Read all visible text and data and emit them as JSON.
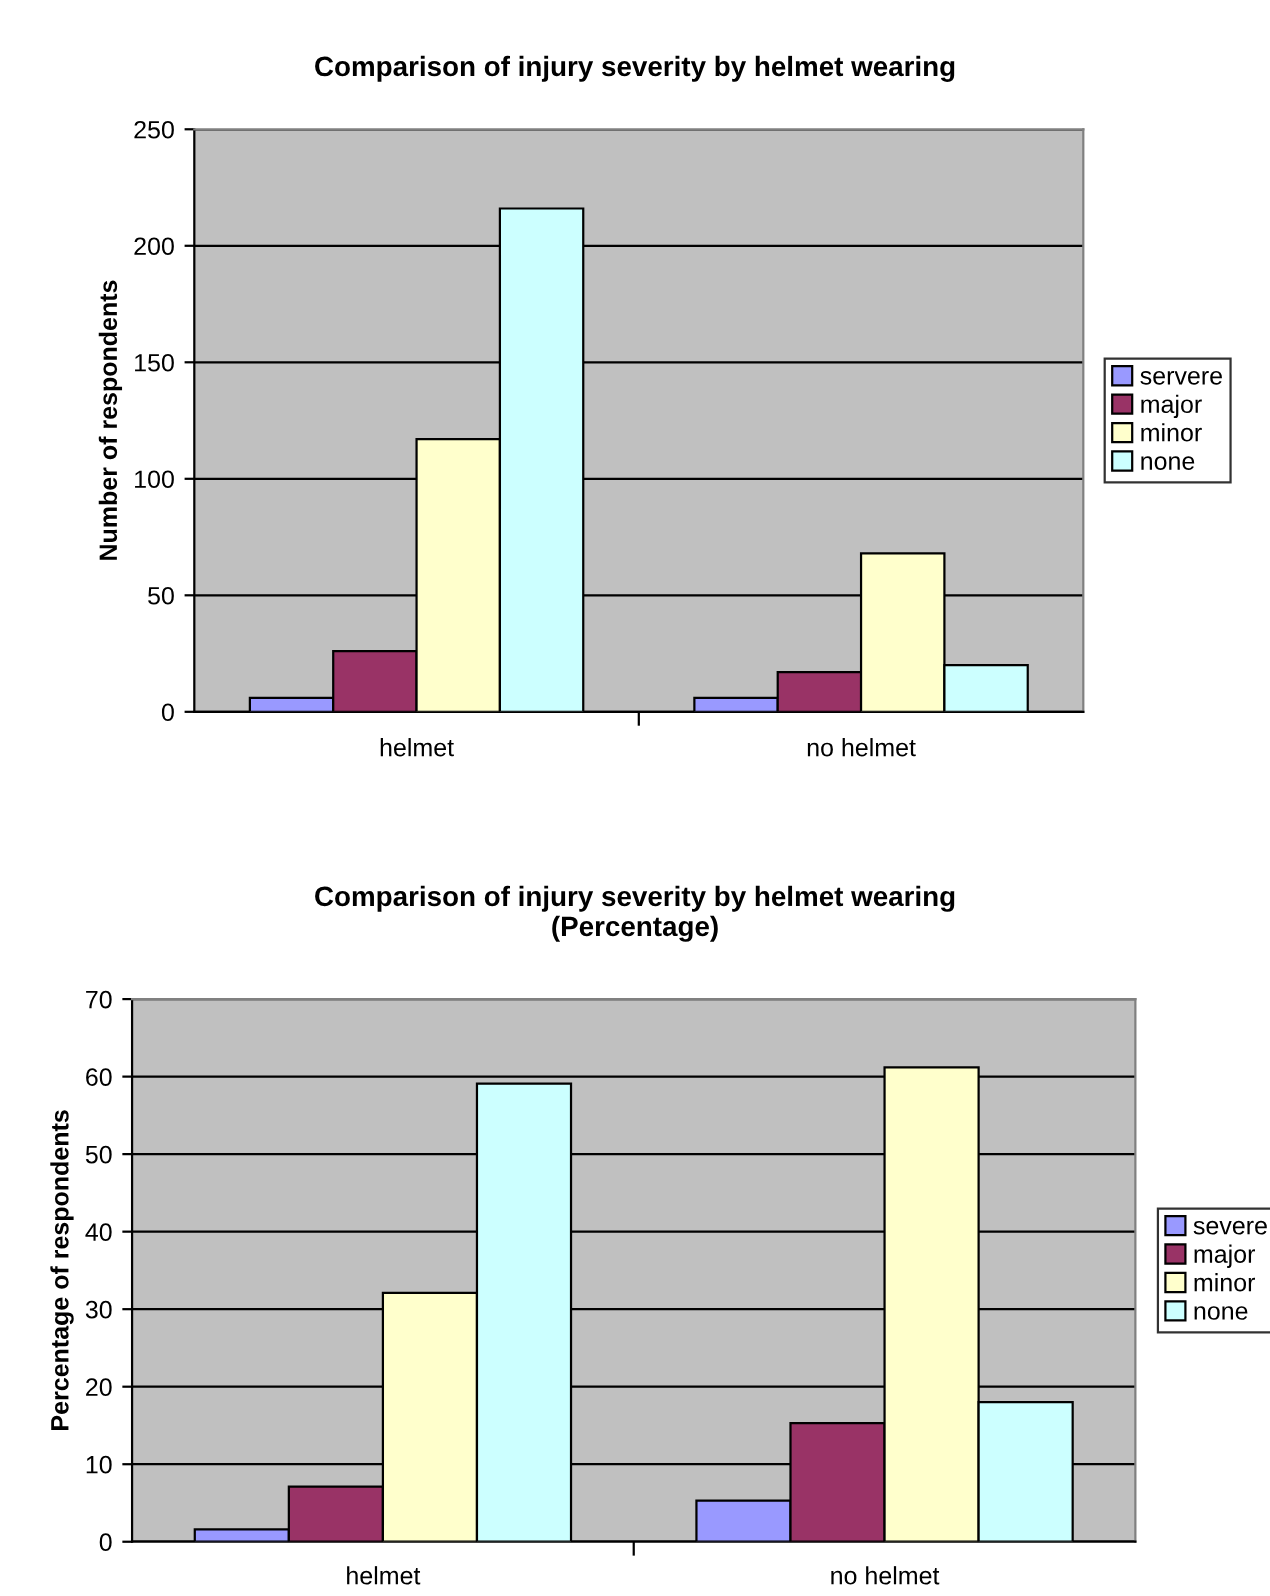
{
  "chart_data": [
    {
      "type": "bar",
      "title": "Comparison of injury severity by helmet wearing",
      "ylabel": "Number of respondents",
      "categories": [
        "helmet",
        "no helmet"
      ],
      "series": [
        {
          "name": "servere",
          "color": "#9999ff",
          "values": [
            6,
            6
          ]
        },
        {
          "name": "major",
          "color": "#993366",
          "values": [
            26,
            17
          ]
        },
        {
          "name": "minor",
          "color": "#ffffcc",
          "values": [
            117,
            68
          ]
        },
        {
          "name": "none",
          "color": "#ccffff",
          "values": [
            216,
            20
          ]
        }
      ],
      "ylim": [
        0,
        250
      ],
      "yticks": [
        0,
        50,
        100,
        150,
        200,
        250
      ],
      "grid": "y",
      "legend": "right"
    },
    {
      "type": "bar",
      "title": "Comparison of injury severity by helmet wearing\n(Percentage)",
      "ylabel": "Percentage of respondents",
      "categories": [
        "helmet",
        "no helmet"
      ],
      "series": [
        {
          "name": "severe",
          "color": "#9999ff",
          "values": [
            1.6,
            5.3
          ]
        },
        {
          "name": "major",
          "color": "#993366",
          "values": [
            7.1,
            15.3
          ]
        },
        {
          "name": "minor",
          "color": "#ffffcc",
          "values": [
            32.1,
            61.2
          ]
        },
        {
          "name": "none",
          "color": "#ccffff",
          "values": [
            59.1,
            18.0
          ]
        }
      ],
      "ylim": [
        0,
        70
      ],
      "yticks": [
        0,
        10,
        20,
        30,
        40,
        50,
        60,
        70
      ],
      "grid": "y",
      "legend": "right"
    }
  ]
}
